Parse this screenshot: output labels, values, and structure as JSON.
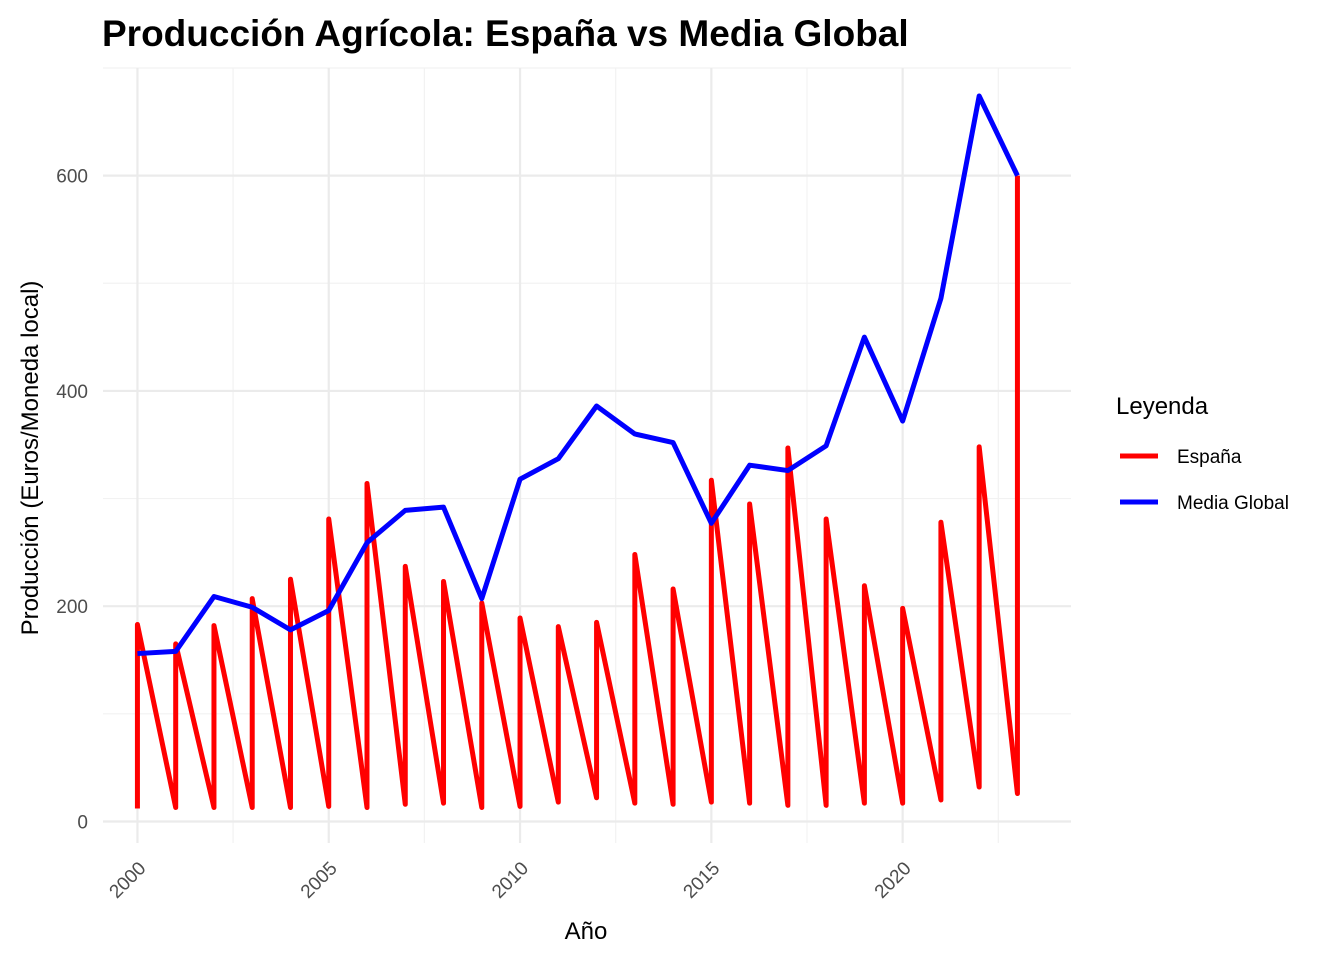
{
  "chart_data": {
    "type": "line",
    "title": "Producción Agrícola: España vs Media Global",
    "xlabel": "Año",
    "ylabel": "Producción (Euros/Moneda local)",
    "xlim": [
      1999.1,
      2024.4
    ],
    "ylim": [
      -20,
      700
    ],
    "x_ticks": [
      2000,
      2005,
      2010,
      2015,
      2020
    ],
    "x_tick_labels": [
      "2000",
      "2005",
      "2010",
      "2015",
      "2020"
    ],
    "y_ticks": [
      0,
      200,
      400,
      600
    ],
    "y_tick_labels": [
      "0",
      "200",
      "400",
      "600"
    ],
    "grid": true,
    "legend": {
      "title": "Leyenda",
      "position": "right",
      "entries": [
        {
          "label": "España",
          "color": "#ff0000"
        },
        {
          "label": "Media Global",
          "color": "#0000ff"
        }
      ]
    },
    "series": [
      {
        "name": "España",
        "color": "#ff0000",
        "x": [
          2000,
          2000,
          2001,
          2001,
          2002,
          2002,
          2003,
          2003,
          2004,
          2004,
          2005,
          2005,
          2006,
          2006,
          2007,
          2007,
          2008,
          2008,
          2009,
          2009,
          2010,
          2010,
          2011,
          2011,
          2012,
          2012,
          2013,
          2013,
          2014,
          2014,
          2015,
          2015,
          2016,
          2016,
          2017,
          2017,
          2018,
          2018,
          2019,
          2019,
          2020,
          2020,
          2021,
          2021,
          2022,
          2022,
          2023,
          2023
        ],
        "y": [
          12,
          183,
          13,
          165,
          13,
          182,
          13,
          207,
          13,
          225,
          14,
          281,
          13,
          314,
          16,
          237,
          17,
          223,
          13,
          203,
          14,
          189,
          18,
          181,
          22,
          185,
          17,
          248,
          16,
          216,
          18,
          317,
          17,
          295,
          15,
          347,
          15,
          281,
          17,
          219,
          17,
          198,
          20,
          278,
          32,
          348,
          26,
          600
        ]
      },
      {
        "name": "Media Global",
        "color": "#0000ff",
        "x": [
          2000,
          2001,
          2002,
          2003,
          2004,
          2005,
          2006,
          2007,
          2008,
          2009,
          2010,
          2011,
          2012,
          2013,
          2014,
          2015,
          2016,
          2017,
          2018,
          2019,
          2020,
          2021,
          2022,
          2023
        ],
        "y": [
          156,
          158,
          209,
          199,
          178,
          196,
          259,
          289,
          292,
          207,
          318,
          337,
          386,
          360,
          352,
          277,
          331,
          326,
          349,
          450,
          372,
          486,
          674,
          600
        ]
      }
    ]
  }
}
